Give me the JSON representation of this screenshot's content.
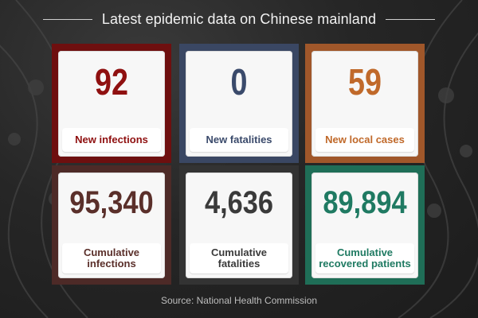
{
  "header": {
    "title": "Latest epidemic data on Chinese mainland"
  },
  "cards": [
    {
      "value": "92",
      "label": "New infections",
      "color": "#8f1010",
      "frame": "#6e0f0f"
    },
    {
      "value": "0",
      "label": "New fatalities",
      "color": "#3a4a6b",
      "frame": "#3a4763"
    },
    {
      "value": "59",
      "label": "New local cases",
      "color": "#c0692a",
      "frame": "#a0572a"
    },
    {
      "value": "95,340",
      "label": "Cumulative infections",
      "color": "#5a2f2a",
      "frame": "#4d2a27"
    },
    {
      "value": "4,636",
      "label": "Cumulative fatalities",
      "color": "#3a3a3a",
      "frame": "#333333"
    },
    {
      "value": "89,894",
      "label": "Cumulative recovered patients",
      "color": "#1f7a62",
      "frame": "#1f6e57"
    }
  ],
  "footer": {
    "source": "Source: National Health Commission"
  }
}
